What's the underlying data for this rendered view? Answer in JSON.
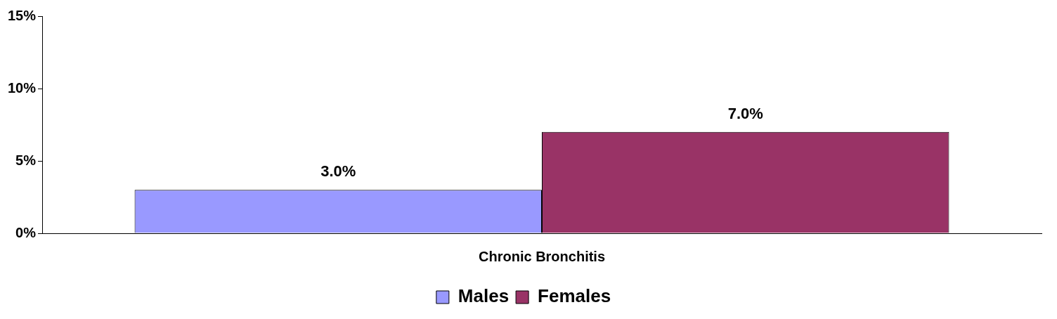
{
  "chart_data": {
    "type": "bar",
    "categories": [
      "Chronic Bronchitis"
    ],
    "series": [
      {
        "name": "Males",
        "color": "#9999ff",
        "values": [
          3.0
        ],
        "value_labels": [
          "3.0%"
        ]
      },
      {
        "name": "Females",
        "color": "#993366",
        "values": [
          7.0
        ],
        "value_labels": [
          "7.0%"
        ]
      }
    ],
    "ylim": [
      0,
      15
    ],
    "yticks": [
      {
        "value": 0,
        "label": "0%"
      },
      {
        "value": 5,
        "label": "5%"
      },
      {
        "value": 10,
        "label": "10%"
      },
      {
        "value": 15,
        "label": "15%"
      }
    ],
    "grid": false,
    "legend": "bottom"
  }
}
